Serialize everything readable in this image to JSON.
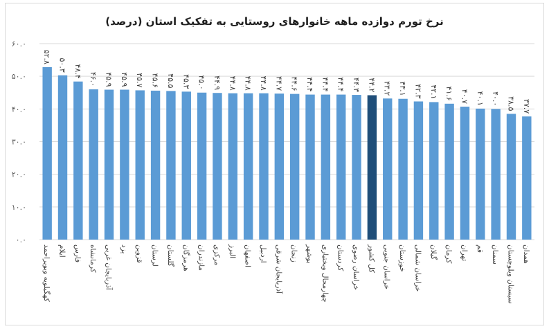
{
  "colors": {
    "bar": "#5b9bd5",
    "highlight": "#1f4e79",
    "grid": "#d9d9d9",
    "axis_text": "#595959"
  },
  "chart_data": {
    "type": "bar",
    "title": "نرخ تورم دوازده ماهه خانوارهای روستایی به تفکیک استان (درصد)",
    "ylim": [
      0,
      60
    ],
    "y_ticks": [
      0,
      10,
      20,
      30,
      40,
      50,
      60
    ],
    "y_tick_labels": [
      "۰.۰",
      "۱۰.۰",
      "۲۰.۰",
      "۳۰.۰",
      "۴۰.۰",
      "۵۰.۰",
      "۶۰.۰"
    ],
    "grid": true,
    "highlight_category": "کل کشور",
    "categories": [
      "کهگیلویه وبویراحمد",
      "ایلام",
      "فارس",
      "کرمانشاه",
      "آذربایجان غربی",
      "یزد",
      "قزوین",
      "لرستان",
      "گلستان",
      "هرمزگان",
      "مازندران",
      "مرکزی",
      "البرز",
      "اصفهان",
      "اردبیل",
      "آذربایجان شرقی",
      "زنجان",
      "بوشهر",
      "چهارمحال وبختیاری",
      "کردستان",
      "خراسان رضوی",
      "کل کشور",
      "خراسان جنوبی",
      "خوزستان",
      "خراسان شمالی",
      "گیلان",
      "کرمان",
      "تهران",
      "قم",
      "سمنان",
      "سیستان وبلوچستان",
      "همدان"
    ],
    "values": [
      52.8,
      50.3,
      48.4,
      46.0,
      45.9,
      45.9,
      45.7,
      45.6,
      45.5,
      45.3,
      45.0,
      44.9,
      44.8,
      44.8,
      44.8,
      44.7,
      44.6,
      44.4,
      44.4,
      44.4,
      44.3,
      44.2,
      43.2,
      43.1,
      42.3,
      42.1,
      41.6,
      40.7,
      40.1,
      40.0,
      38.5,
      37.7
    ],
    "value_labels": [
      "۵۲.۸",
      "۵۰.۳",
      "۴۸.۴",
      "۴۶.۰",
      "۴۵.۹",
      "۴۵.۹",
      "۴۵.۷",
      "۴۵.۶",
      "۴۵.۵",
      "۴۵.۳",
      "۴۵.۰",
      "۴۴.۹",
      "۴۴.۸",
      "۴۴.۸",
      "۴۴.۸",
      "۴۴.۷",
      "۴۴.۶",
      "۴۴.۴",
      "۴۴.۴",
      "۴۴.۴",
      "۴۴.۳",
      "۴۴.۲",
      "۴۳.۲",
      "۴۳.۱",
      "۴۲.۳",
      "۴۲.۱",
      "۴۱.۶",
      "۴۰.۷",
      "۴۰.۱",
      "۴۰.۰",
      "۳۸.۵",
      "۳۷.۷"
    ]
  }
}
